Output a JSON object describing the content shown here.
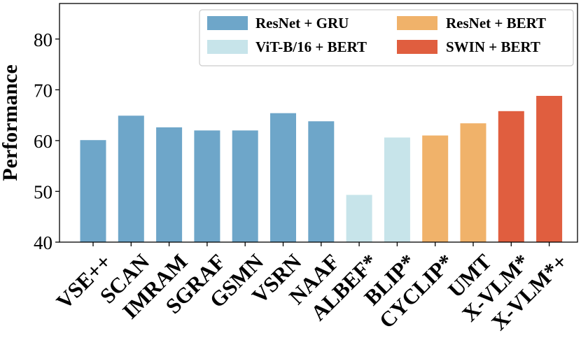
{
  "chart_data": {
    "type": "bar",
    "ylabel": "Performance",
    "xlabel": "",
    "ylim": [
      40,
      87
    ],
    "yticks": [
      "40",
      "50",
      "60",
      "70",
      "80"
    ],
    "grid": false,
    "legend_position": "top-right",
    "legend_columns": 2,
    "categories": [
      "VSE++",
      "SCAN",
      "IMRAM",
      "SGRAF",
      "GSMN",
      "VSRN",
      "NAAF",
      "ALBEF*",
      "BLIP*",
      "CYCLIP*",
      "UMT",
      "X-VLM*",
      "X-VLM*+"
    ],
    "values": [
      60.1,
      64.9,
      62.6,
      62.0,
      62.0,
      65.4,
      63.8,
      49.3,
      60.6,
      61.0,
      63.4,
      65.8,
      68.8
    ],
    "groups": [
      0,
      0,
      0,
      0,
      0,
      0,
      0,
      1,
      1,
      2,
      2,
      3,
      3
    ],
    "series": [
      {
        "name": "ResNet + GRU",
        "color": "#6ea6c9"
      },
      {
        "name": "ViT-B/16 + BERT",
        "color": "#c7e4ea"
      },
      {
        "name": "ResNet + BERT",
        "color": "#f0b26a"
      },
      {
        "name": "SWIN + BERT",
        "color": "#e05e3f"
      }
    ]
  }
}
